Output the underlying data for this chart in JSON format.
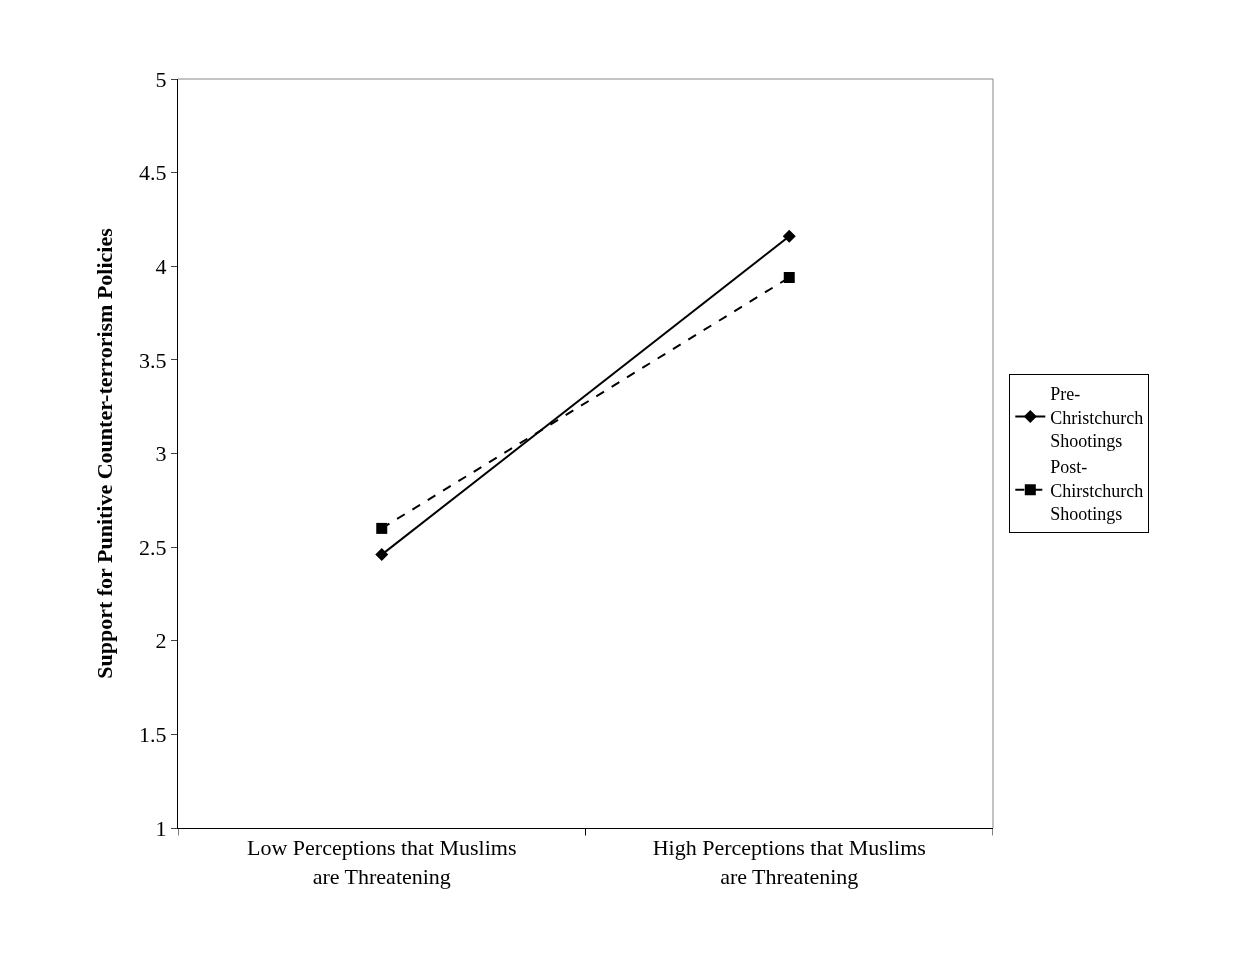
{
  "chart_data": {
    "type": "line",
    "ylabel": "Support for Punitive Counter-terrorism Policies",
    "categories": [
      "Low Perceptions that Muslims are Threatening",
      "High Perceptions that Muslims are Threatening"
    ],
    "series": [
      {
        "name": "Pre-Christchurch Shootings",
        "color": "#000000",
        "values": [
          2.46,
          4.16
        ],
        "marker": "diamond",
        "line_style": "solid"
      },
      {
        "name": "Post-Chirstchurch Shootings",
        "color": "#000000",
        "values": [
          2.6,
          3.94
        ],
        "marker": "square",
        "line_style": "dashed"
      }
    ],
    "ylim": [
      1,
      5
    ],
    "yticks": [
      1,
      1.5,
      2,
      2.5,
      3,
      3.5,
      4,
      4.5,
      5
    ],
    "legend": "right"
  }
}
